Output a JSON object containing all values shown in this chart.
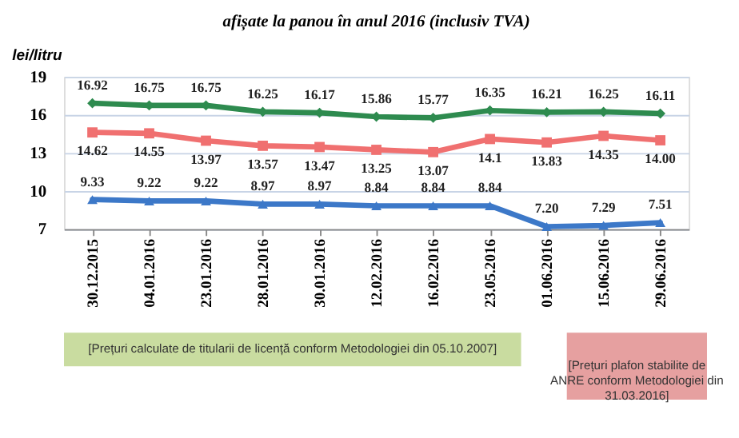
{
  "chart_data": {
    "type": "line",
    "title": "afișate la panou în anul 2016 (inclusiv TVA)",
    "ylabel": "lei/litru",
    "categories": [
      "30.12.2015",
      "04.01.2016",
      "23.01.2016",
      "28.01.2016",
      "30.01.2016",
      "12.02.2016",
      "16.02.2016",
      "23.05.2016",
      "01.06.2016",
      "15.06.2016",
      "29.06.2016"
    ],
    "series": [
      {
        "color": "#2e8b4f",
        "marker": "diamond",
        "values": [
          16.92,
          16.75,
          16.75,
          16.25,
          16.17,
          15.86,
          15.77,
          16.35,
          16.21,
          16.25,
          16.11
        ],
        "value_labels": [
          "16.92",
          "16.75",
          "16.75",
          "16.25",
          "16.17",
          "15.86",
          "15.77",
          "16.35",
          "16.21",
          "16.25",
          "16.11"
        ]
      },
      {
        "color": "#f07070",
        "marker": "square",
        "values": [
          14.62,
          14.55,
          13.97,
          13.57,
          13.47,
          13.25,
          13.07,
          14.1,
          13.83,
          14.35,
          14.0
        ],
        "value_labels": [
          "14.62",
          "14.55",
          "13.97",
          "13.57",
          "13.47",
          "13.25",
          "13.07",
          "14.1",
          "13.83",
          "14.35",
          "14.00"
        ]
      },
      {
        "color": "#3c78c8",
        "marker": "triangle",
        "values": [
          9.33,
          9.22,
          9.22,
          8.97,
          8.97,
          8.84,
          8.84,
          8.84,
          7.2,
          7.29,
          7.51
        ],
        "value_labels": [
          "9.33",
          "9.22",
          "9.22",
          "8.97",
          "8.97",
          "8.84",
          "8.84",
          "8.84",
          "7.20",
          "7.29",
          "7.51"
        ]
      }
    ],
    "ylim": [
      7,
      19
    ],
    "yticks": [
      7,
      10,
      13,
      16,
      19
    ],
    "grid": "y",
    "line_style": "solid",
    "annotations": [
      "[Prețuri calculate de titularii de licență conform Metodologiei din 05.10.2007]",
      "[Prețuri plafon stabilite  de ANRE conform Metodologiei din 31.03.2016]"
    ]
  }
}
